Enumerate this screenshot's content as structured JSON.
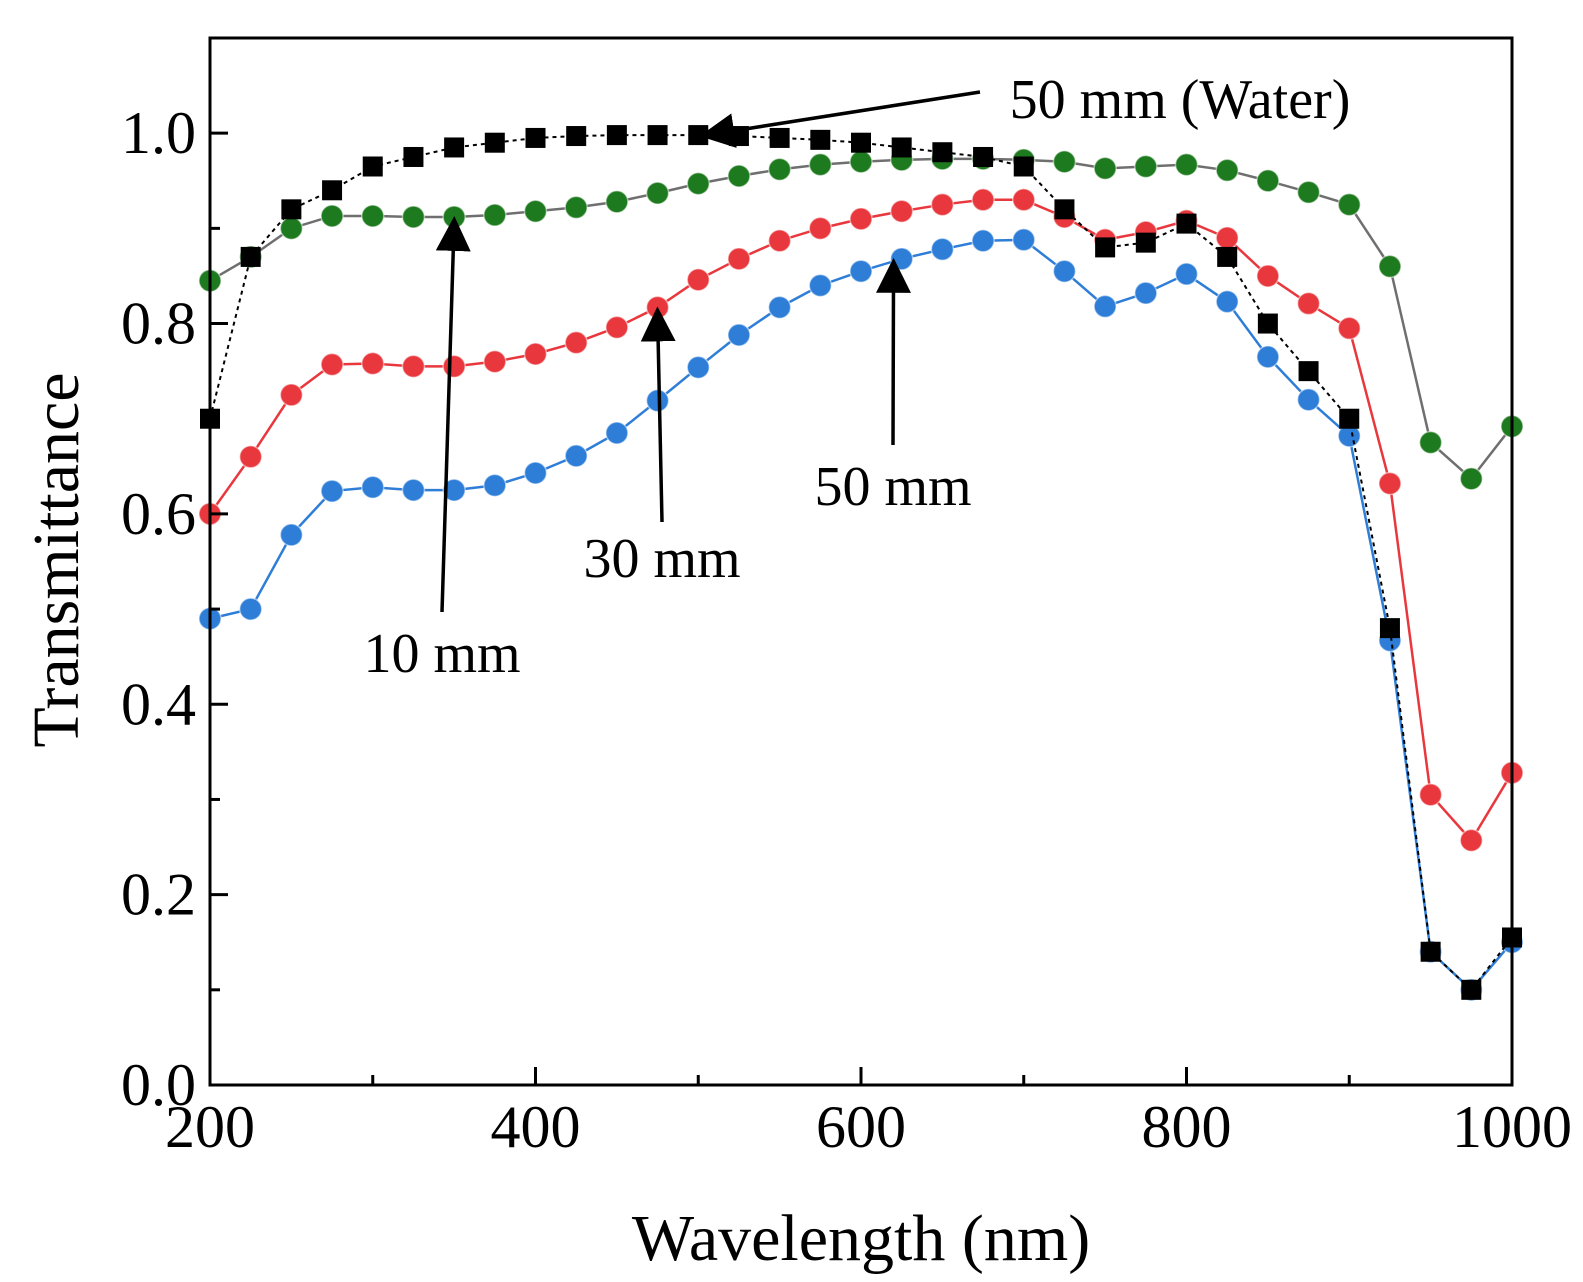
{
  "chart_data": {
    "type": "line",
    "title": "",
    "xlabel": "Wavelength (nm)",
    "ylabel": "Transmittance",
    "xlim": [
      200,
      1000
    ],
    "ylim": [
      0.0,
      1.1
    ],
    "xticks": [
      200,
      400,
      600,
      800,
      1000
    ],
    "xtick_labels": [
      "200",
      "400",
      "600",
      "800",
      "1000"
    ],
    "yticks": [
      0.0,
      0.2,
      0.4,
      0.6,
      0.8,
      1.0
    ],
    "ytick_labels": [
      "0.0",
      "0.2",
      "0.4",
      "0.6",
      "0.8",
      "1.0"
    ],
    "x": [
      200,
      225,
      250,
      275,
      300,
      325,
      350,
      375,
      400,
      425,
      450,
      475,
      500,
      525,
      550,
      575,
      600,
      625,
      650,
      675,
      700,
      725,
      750,
      775,
      800,
      825,
      850,
      875,
      900,
      925,
      950,
      975,
      1000
    ],
    "series": [
      {
        "name": "50 mm (Water)",
        "color": "#000000",
        "marker": "square",
        "values": [
          0.7,
          0.87,
          0.92,
          0.94,
          0.965,
          0.975,
          0.985,
          0.99,
          0.995,
          0.997,
          0.998,
          0.998,
          0.998,
          0.997,
          0.995,
          0.993,
          0.99,
          0.985,
          0.98,
          0.975,
          0.965,
          0.92,
          0.88,
          0.885,
          0.905,
          0.87,
          0.8,
          0.75,
          0.7,
          0.48,
          0.14,
          0.1,
          0.155
        ]
      },
      {
        "name": "10 mm",
        "color": "#1e7a1e",
        "marker": "circle",
        "values": [
          0.845,
          0.87,
          0.9,
          0.913,
          0.913,
          0.912,
          0.912,
          0.914,
          0.918,
          0.922,
          0.928,
          0.937,
          0.947,
          0.955,
          0.962,
          0.967,
          0.97,
          0.972,
          0.973,
          0.973,
          0.972,
          0.97,
          0.963,
          0.965,
          0.967,
          0.961,
          0.95,
          0.938,
          0.925,
          0.86,
          0.675,
          0.637,
          0.692
        ]
      },
      {
        "name": "30 mm",
        "color": "#e8383d",
        "marker": "circle",
        "values": [
          0.6,
          0.66,
          0.725,
          0.757,
          0.758,
          0.755,
          0.755,
          0.76,
          0.768,
          0.78,
          0.796,
          0.817,
          0.846,
          0.868,
          0.887,
          0.9,
          0.91,
          0.918,
          0.925,
          0.93,
          0.93,
          0.912,
          0.888,
          0.896,
          0.908,
          0.89,
          0.85,
          0.821,
          0.795,
          0.632,
          0.305,
          0.257,
          0.328
        ]
      },
      {
        "name": "50 mm",
        "color": "#2e7ed8",
        "marker": "circle",
        "values": [
          0.49,
          0.5,
          0.578,
          0.624,
          0.628,
          0.625,
          0.625,
          0.63,
          0.643,
          0.661,
          0.685,
          0.719,
          0.754,
          0.788,
          0.817,
          0.84,
          0.855,
          0.868,
          0.878,
          0.887,
          0.888,
          0.855,
          0.818,
          0.832,
          0.852,
          0.823,
          0.765,
          0.72,
          0.682,
          0.467,
          0.14,
          0.1,
          0.15
        ]
      }
    ],
    "annotations": [
      {
        "text": "50 mm (Water)",
        "target": [
          505,
          0.998
        ],
        "series": "50 mm (Water)"
      },
      {
        "text": "10 mm",
        "target": [
          350,
          0.912
        ],
        "series": "10 mm"
      },
      {
        "text": "30 mm",
        "target": [
          475,
          0.817
        ],
        "series": "30 mm"
      },
      {
        "text": "50 mm",
        "target": [
          620,
          0.868
        ],
        "series": "50 mm"
      }
    ],
    "grid": false,
    "legend": "none (inline annotations)"
  }
}
